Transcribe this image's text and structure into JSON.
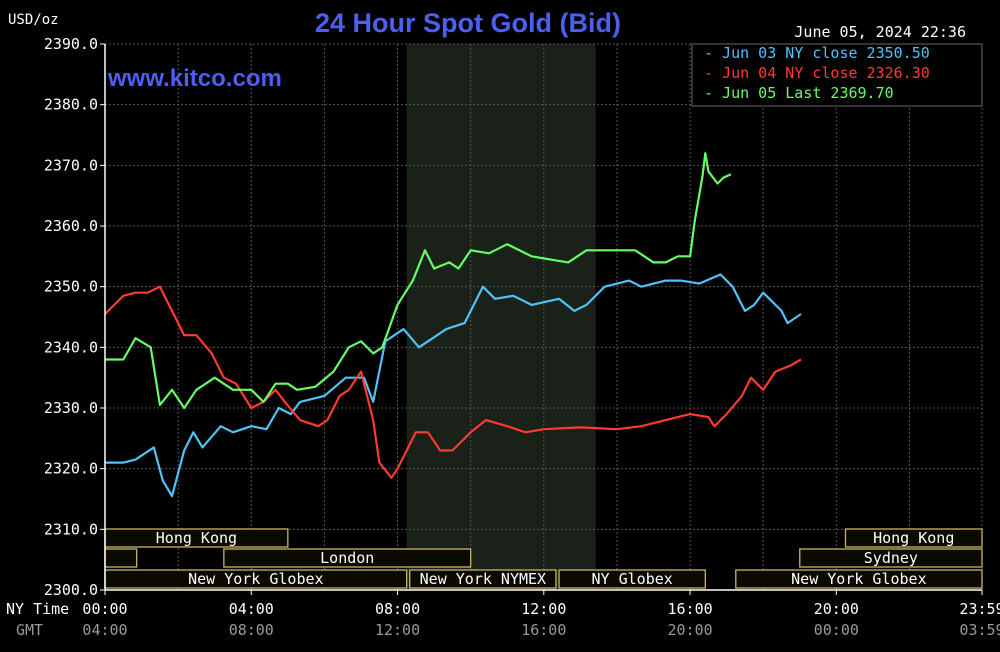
{
  "colors": {
    "background": "#000000",
    "plot_background": "#000000",
    "shaded_session": "#1a2118",
    "grid": "#555555",
    "axis": "#ffffff",
    "title": "#4d5ff0",
    "watermark": "#4d5ff0",
    "label": "#ffffff",
    "market_box_fill": "#0a0a00",
    "market_box_stroke": "#c8b464",
    "market_text": "#ffffff",
    "gmt_text": "#999999"
  },
  "header": {
    "unit": "USD/oz",
    "title": "24 Hour Spot Gold (Bid)",
    "timestamp": "June 05, 2024 22:36",
    "watermark": "www.kitco.com"
  },
  "axis_rows": {
    "ny_label": "NY Time",
    "gmt_label": "GMT"
  },
  "chart_data": {
    "type": "line",
    "title": "24 Hour Spot Gold (Bid)",
    "ylabel": "USD/oz",
    "ylim": [
      2300,
      2390
    ],
    "xlim": [
      0,
      1439
    ],
    "grid": true,
    "legend_position": "top-right",
    "yticks": [
      {
        "value": 2390,
        "label": "2390.0"
      },
      {
        "value": 2380,
        "label": "2380.0"
      },
      {
        "value": 2370,
        "label": "2370.0"
      },
      {
        "value": 2360,
        "label": "2360.0"
      },
      {
        "value": 2350,
        "label": "2350.0"
      },
      {
        "value": 2340,
        "label": "2340.0"
      },
      {
        "value": 2330,
        "label": "2330.0"
      },
      {
        "value": 2320,
        "label": "2320.0"
      },
      {
        "value": 2310,
        "label": "2310.0"
      },
      {
        "value": 2300,
        "label": "2300.0"
      }
    ],
    "xticks": [
      {
        "value": 0,
        "ny": "00:00",
        "gmt": "04:00"
      },
      {
        "value": 240,
        "ny": "04:00",
        "gmt": "08:00"
      },
      {
        "value": 480,
        "ny": "08:00",
        "gmt": "12:00"
      },
      {
        "value": 720,
        "ny": "12:00",
        "gmt": "16:00"
      },
      {
        "value": 960,
        "ny": "16:00",
        "gmt": "20:00"
      },
      {
        "value": 1200,
        "ny": "20:00",
        "gmt": "00:00"
      },
      {
        "value": 1439,
        "ny": "23:59",
        "gmt": "03:59"
      }
    ],
    "shaded_range": [
      495,
      805
    ],
    "series": [
      {
        "name": "Jun 03 NY close 2350.50",
        "color": "#4fc3f7",
        "points": [
          [
            0,
            2321
          ],
          [
            30,
            2321
          ],
          [
            50,
            2321.5
          ],
          [
            80,
            2323.5
          ],
          [
            95,
            2318
          ],
          [
            110,
            2315.5
          ],
          [
            130,
            2323
          ],
          [
            145,
            2326
          ],
          [
            160,
            2323.5
          ],
          [
            190,
            2327
          ],
          [
            210,
            2326
          ],
          [
            240,
            2327
          ],
          [
            265,
            2326.5
          ],
          [
            285,
            2330
          ],
          [
            305,
            2329
          ],
          [
            320,
            2331
          ],
          [
            360,
            2332
          ],
          [
            395,
            2335
          ],
          [
            425,
            2335
          ],
          [
            440,
            2331
          ],
          [
            460,
            2341
          ],
          [
            490,
            2343
          ],
          [
            515,
            2340
          ],
          [
            530,
            2341
          ],
          [
            560,
            2343
          ],
          [
            590,
            2344
          ],
          [
            620,
            2350
          ],
          [
            640,
            2348
          ],
          [
            670,
            2348.5
          ],
          [
            700,
            2347
          ],
          [
            745,
            2348
          ],
          [
            770,
            2346
          ],
          [
            790,
            2347
          ],
          [
            820,
            2350
          ],
          [
            860,
            2351
          ],
          [
            880,
            2350
          ],
          [
            920,
            2351
          ],
          [
            945,
            2351
          ],
          [
            975,
            2350.5
          ],
          [
            1010,
            2352
          ],
          [
            1030,
            2350
          ],
          [
            1050,
            2346
          ],
          [
            1065,
            2347
          ],
          [
            1080,
            2349
          ],
          [
            1110,
            2346
          ],
          [
            1120,
            2344
          ],
          [
            1142,
            2345.5
          ]
        ]
      },
      {
        "name": "Jun 04 NY close 2326.30",
        "color": "#ff3b2f",
        "points": [
          [
            0,
            2345.5
          ],
          [
            30,
            2348.5
          ],
          [
            50,
            2349
          ],
          [
            70,
            2349
          ],
          [
            90,
            2350
          ],
          [
            110,
            2346
          ],
          [
            130,
            2342
          ],
          [
            150,
            2342
          ],
          [
            175,
            2339
          ],
          [
            195,
            2335
          ],
          [
            215,
            2334
          ],
          [
            240,
            2330
          ],
          [
            260,
            2331
          ],
          [
            280,
            2333
          ],
          [
            295,
            2331
          ],
          [
            320,
            2328
          ],
          [
            350,
            2327
          ],
          [
            365,
            2328
          ],
          [
            385,
            2332
          ],
          [
            400,
            2333
          ],
          [
            420,
            2336
          ],
          [
            440,
            2328
          ],
          [
            450,
            2321
          ],
          [
            470,
            2318.5
          ],
          [
            480,
            2320
          ],
          [
            495,
            2323
          ],
          [
            510,
            2326
          ],
          [
            530,
            2326
          ],
          [
            550,
            2323
          ],
          [
            570,
            2323
          ],
          [
            600,
            2326
          ],
          [
            625,
            2328
          ],
          [
            660,
            2327
          ],
          [
            690,
            2326
          ],
          [
            720,
            2326.5
          ],
          [
            780,
            2326.8
          ],
          [
            840,
            2326.5
          ],
          [
            880,
            2327
          ],
          [
            920,
            2328
          ],
          [
            960,
            2329
          ],
          [
            990,
            2328.5
          ],
          [
            1000,
            2327
          ],
          [
            1020,
            2329
          ],
          [
            1045,
            2332
          ],
          [
            1060,
            2335
          ],
          [
            1080,
            2333
          ],
          [
            1100,
            2336
          ],
          [
            1125,
            2337
          ],
          [
            1142,
            2338
          ]
        ]
      },
      {
        "name": "Jun 05 Last 2369.70",
        "color": "#66ff66",
        "points": [
          [
            0,
            2338
          ],
          [
            30,
            2338
          ],
          [
            50,
            2341.5
          ],
          [
            75,
            2340
          ],
          [
            90,
            2330.5
          ],
          [
            110,
            2333
          ],
          [
            130,
            2330
          ],
          [
            150,
            2333
          ],
          [
            180,
            2335
          ],
          [
            210,
            2333
          ],
          [
            240,
            2333
          ],
          [
            260,
            2331
          ],
          [
            280,
            2334
          ],
          [
            300,
            2334
          ],
          [
            315,
            2333
          ],
          [
            345,
            2333.5
          ],
          [
            375,
            2336
          ],
          [
            400,
            2340
          ],
          [
            420,
            2341
          ],
          [
            440,
            2339
          ],
          [
            455,
            2340
          ],
          [
            480,
            2347
          ],
          [
            505,
            2351
          ],
          [
            525,
            2356
          ],
          [
            540,
            2353
          ],
          [
            565,
            2354
          ],
          [
            580,
            2353
          ],
          [
            600,
            2356
          ],
          [
            630,
            2355.5
          ],
          [
            660,
            2357
          ],
          [
            700,
            2355
          ],
          [
            730,
            2354.5
          ],
          [
            760,
            2354
          ],
          [
            790,
            2356
          ],
          [
            840,
            2356
          ],
          [
            870,
            2356
          ],
          [
            900,
            2354
          ],
          [
            920,
            2354
          ],
          [
            940,
            2355
          ],
          [
            960,
            2355
          ],
          [
            968,
            2361
          ],
          [
            980,
            2368
          ],
          [
            985,
            2372
          ],
          [
            990,
            2369
          ],
          [
            1005,
            2367
          ],
          [
            1015,
            2368
          ],
          [
            1027,
            2368.5
          ]
        ]
      }
    ]
  },
  "markets": [
    {
      "label": "Hong Kong",
      "start": 0,
      "end": 300,
      "row": 0
    },
    {
      "label": "Hong Kong",
      "start": 1215,
      "end": 1439,
      "row": 0
    },
    {
      "label": "",
      "start": 0,
      "end": 52,
      "row": 1
    },
    {
      "label": "London",
      "start": 195,
      "end": 600,
      "row": 1
    },
    {
      "label": "Sydney",
      "start": 1140,
      "end": 1439,
      "row": 1
    },
    {
      "label": "New York Globex",
      "start": 0,
      "end": 495,
      "row": 2
    },
    {
      "label": "New York NYMEX",
      "start": 500,
      "end": 740,
      "row": 2
    },
    {
      "label": "NY Globex",
      "start": 745,
      "end": 985,
      "row": 2
    },
    {
      "label": "New York Globex",
      "start": 1035,
      "end": 1439,
      "row": 2
    }
  ]
}
